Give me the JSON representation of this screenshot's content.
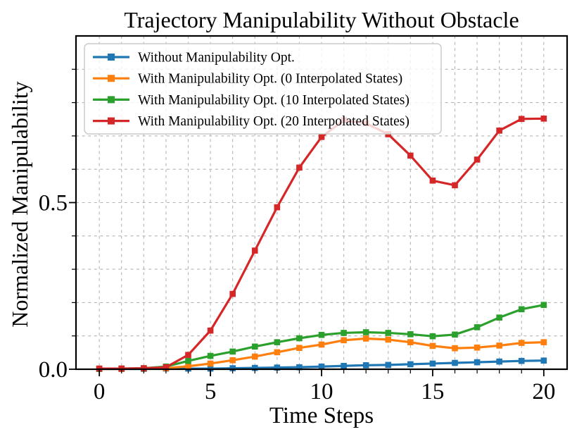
{
  "chart_data": {
    "type": "line",
    "title": "Trajectory Manipulability Without Obstacle",
    "xlabel": "Time Steps",
    "ylabel": "Normalized Manipulability",
    "x": [
      0,
      1,
      2,
      3,
      4,
      5,
      6,
      7,
      8,
      9,
      10,
      11,
      12,
      13,
      14,
      15,
      16,
      17,
      18,
      19,
      20
    ],
    "series": [
      {
        "name": "Without Manipulability Opt.",
        "color": "#1f77b4",
        "marker": "square",
        "values": [
          0.001,
          0.001,
          0.001,
          0.002,
          0.002,
          0.002,
          0.003,
          0.004,
          0.005,
          0.006,
          0.008,
          0.01,
          0.012,
          0.013,
          0.015,
          0.017,
          0.019,
          0.021,
          0.023,
          0.025,
          0.026
        ]
      },
      {
        "name": "With Manipulability Opt. (0 Interpolated States)",
        "color": "#ff7f0e",
        "marker": "square",
        "values": [
          0.001,
          0.001,
          0.002,
          0.003,
          0.009,
          0.017,
          0.027,
          0.038,
          0.051,
          0.064,
          0.074,
          0.087,
          0.092,
          0.089,
          0.081,
          0.07,
          0.063,
          0.065,
          0.071,
          0.079,
          0.081
        ]
      },
      {
        "name": "With Manipulability Opt. (10 Interpolated States)",
        "color": "#2ca02c",
        "marker": "square",
        "values": [
          0.001,
          0.002,
          0.003,
          0.008,
          0.025,
          0.04,
          0.053,
          0.068,
          0.081,
          0.093,
          0.103,
          0.109,
          0.111,
          0.109,
          0.105,
          0.099,
          0.104,
          0.126,
          0.155,
          0.18,
          0.193
        ]
      },
      {
        "name": "With Manipulability Opt. (20 Interpolated States)",
        "color": "#d62728",
        "marker": "square",
        "values": [
          0.002,
          0.002,
          0.003,
          0.006,
          0.043,
          0.116,
          0.226,
          0.356,
          0.486,
          0.605,
          0.697,
          0.747,
          0.738,
          0.705,
          0.641,
          0.566,
          0.552,
          0.629,
          0.716,
          0.751,
          0.752
        ]
      }
    ],
    "xlim": [
      -1.05,
      21.05
    ],
    "ylim": [
      0,
      1.0
    ],
    "xticks": {
      "major": [
        0,
        5,
        10,
        15,
        20
      ],
      "labels": [
        "0",
        "5",
        "10",
        "15",
        "20"
      ],
      "minor_step": 1
    },
    "yticks": {
      "major": [
        0.0,
        0.5
      ],
      "labels": [
        "0.0",
        "0.5"
      ],
      "minor_step": 0.1
    },
    "grid": {
      "on": true,
      "style": "dashed",
      "color": "#b4b4b4"
    },
    "legend": {
      "position": "upper left",
      "frame": true
    }
  },
  "style": {
    "spine_color": "#000000",
    "background": "#ffffff",
    "legend_border": "#cccccc"
  }
}
